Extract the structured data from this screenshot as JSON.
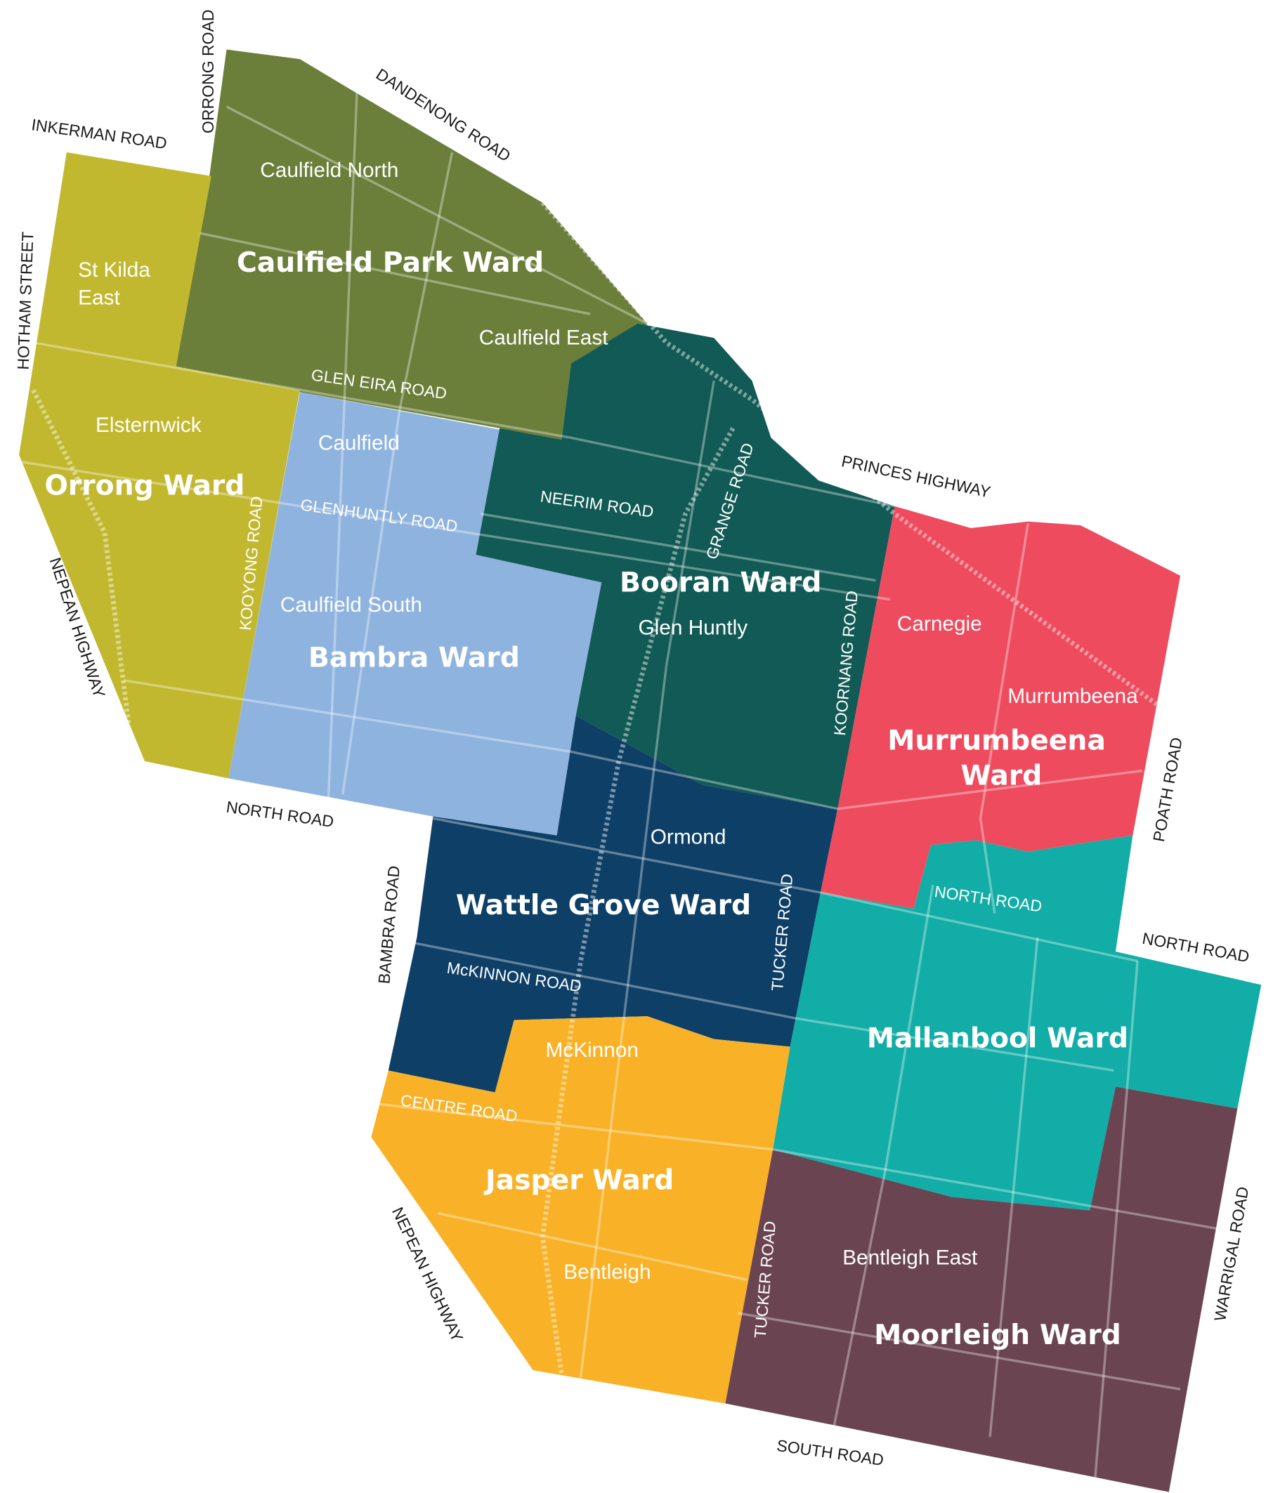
{
  "wards": [
    [
      "Caulfield Park Ward"
    ],
    [
      "Orrong Ward"
    ],
    [
      "Bambra Ward"
    ],
    [
      "Booran Ward"
    ],
    [
      "Wattle Grove Ward"
    ],
    [
      "Murrumbeena",
      "Ward"
    ],
    [
      "Mallanbool Ward"
    ],
    [
      "Jasper Ward"
    ],
    [
      "Moorleigh Ward"
    ]
  ],
  "suburbs": [
    [
      "Caulfield North"
    ],
    [
      "St Kilda",
      "East"
    ],
    [
      "Caulfield East"
    ],
    [
      "Elsternwick"
    ],
    [
      "Caulfield"
    ],
    [
      "Caulfield South"
    ],
    [
      "Glen Huntly"
    ],
    [
      "Carnegie"
    ],
    [
      "Murrumbeena"
    ],
    [
      "Ormond"
    ],
    [
      "McKinnon"
    ],
    [
      "Bentleigh"
    ],
    [
      "Bentleigh East"
    ]
  ],
  "roads": [
    "ORRONG ROAD",
    "DANDENONG ROAD",
    "INKERMAN ROAD",
    "HOTHAM STREET",
    "NEPEAN HIGHWAY",
    "NORTH ROAD",
    "PRINCES HIGHWAY",
    "POATH ROAD",
    "NORTH ROAD",
    "BAMBRA ROAD",
    "NEPEAN HIGHWAY",
    "WARRIGAL ROAD",
    "SOUTH ROAD",
    "GLEN EIRA ROAD",
    "GLENHUNTLY ROAD",
    "NEERIM ROAD",
    "GRANGE ROAD",
    "KOOYONG ROAD",
    "KOORNANG ROAD",
    "NORTH ROAD",
    "TUCKER ROAD",
    "McKINNON ROAD",
    "CENTRE ROAD",
    "TUCKER ROAD"
  ]
}
